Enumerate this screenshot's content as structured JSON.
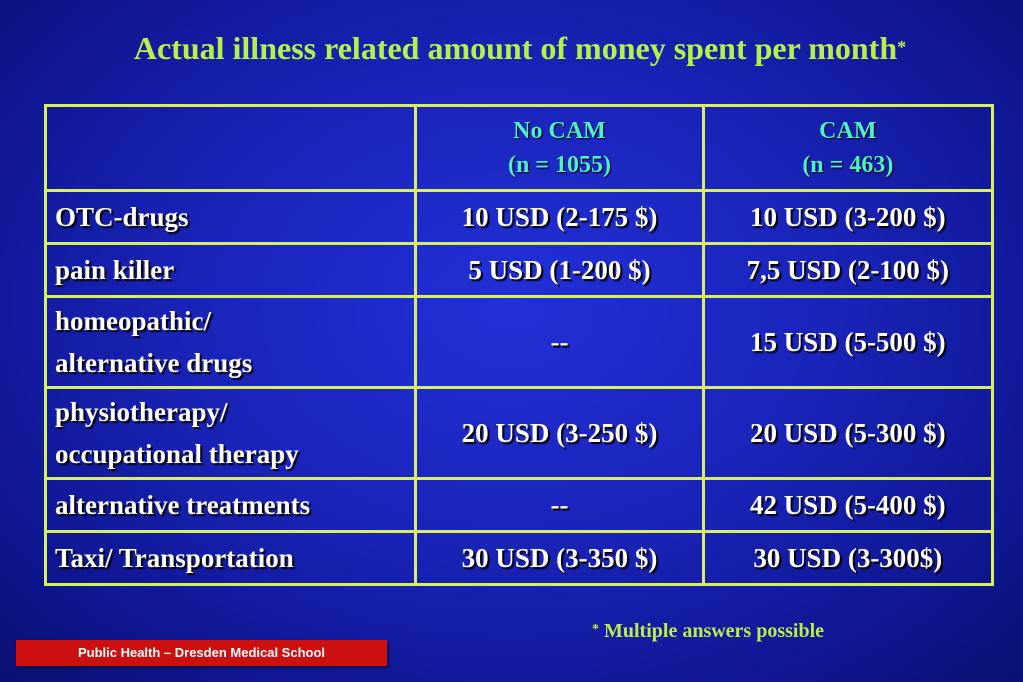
{
  "title": {
    "text": "Actual illness related amount of money spent per month",
    "marker": "*"
  },
  "table": {
    "headers": [
      {
        "line1": "",
        "line2": ""
      },
      {
        "line1": "No CAM",
        "line2": "(n = 1055)"
      },
      {
        "line1": "CAM",
        "line2": "(n = 463)"
      }
    ],
    "rows": [
      {
        "label_line1": "OTC-drugs",
        "label_line2": "",
        "no_cam": "10 USD (2-175 $)",
        "cam": "10 USD (3-200 $)"
      },
      {
        "label_line1": "pain killer",
        "label_line2": "",
        "no_cam": "5 USD (1-200 $)",
        "cam": "7,5 USD (2-100 $)"
      },
      {
        "label_line1": "homeopathic/",
        "label_line2": "alternative drugs",
        "no_cam": "--",
        "cam": "15 USD (5-500 $)"
      },
      {
        "label_line1": "physiotherapy/",
        "label_line2": "occupational therapy",
        "no_cam": "20 USD (3-250 $)",
        "cam": "20 USD (5-300 $)"
      },
      {
        "label_line1": "alternative treatments",
        "label_line2": "",
        "no_cam": "--",
        "cam": "42 USD (5-400 $)"
      },
      {
        "label_line1": "Taxi/ Transportation",
        "label_line2": "",
        "no_cam": "30 USD (3-350 $)",
        "cam": "30 USD (3-300$)"
      }
    ]
  },
  "footnote": {
    "marker": "*",
    "text": "Multiple answers possible"
  },
  "footer": {
    "label": "Public Health – Dresden Medical School"
  },
  "colors": {
    "background": "#1a23b8",
    "title": "#b8f04a",
    "header_text": "#4ef0c8",
    "grid": "#d8f060",
    "footer_bg": "#cc1010"
  }
}
